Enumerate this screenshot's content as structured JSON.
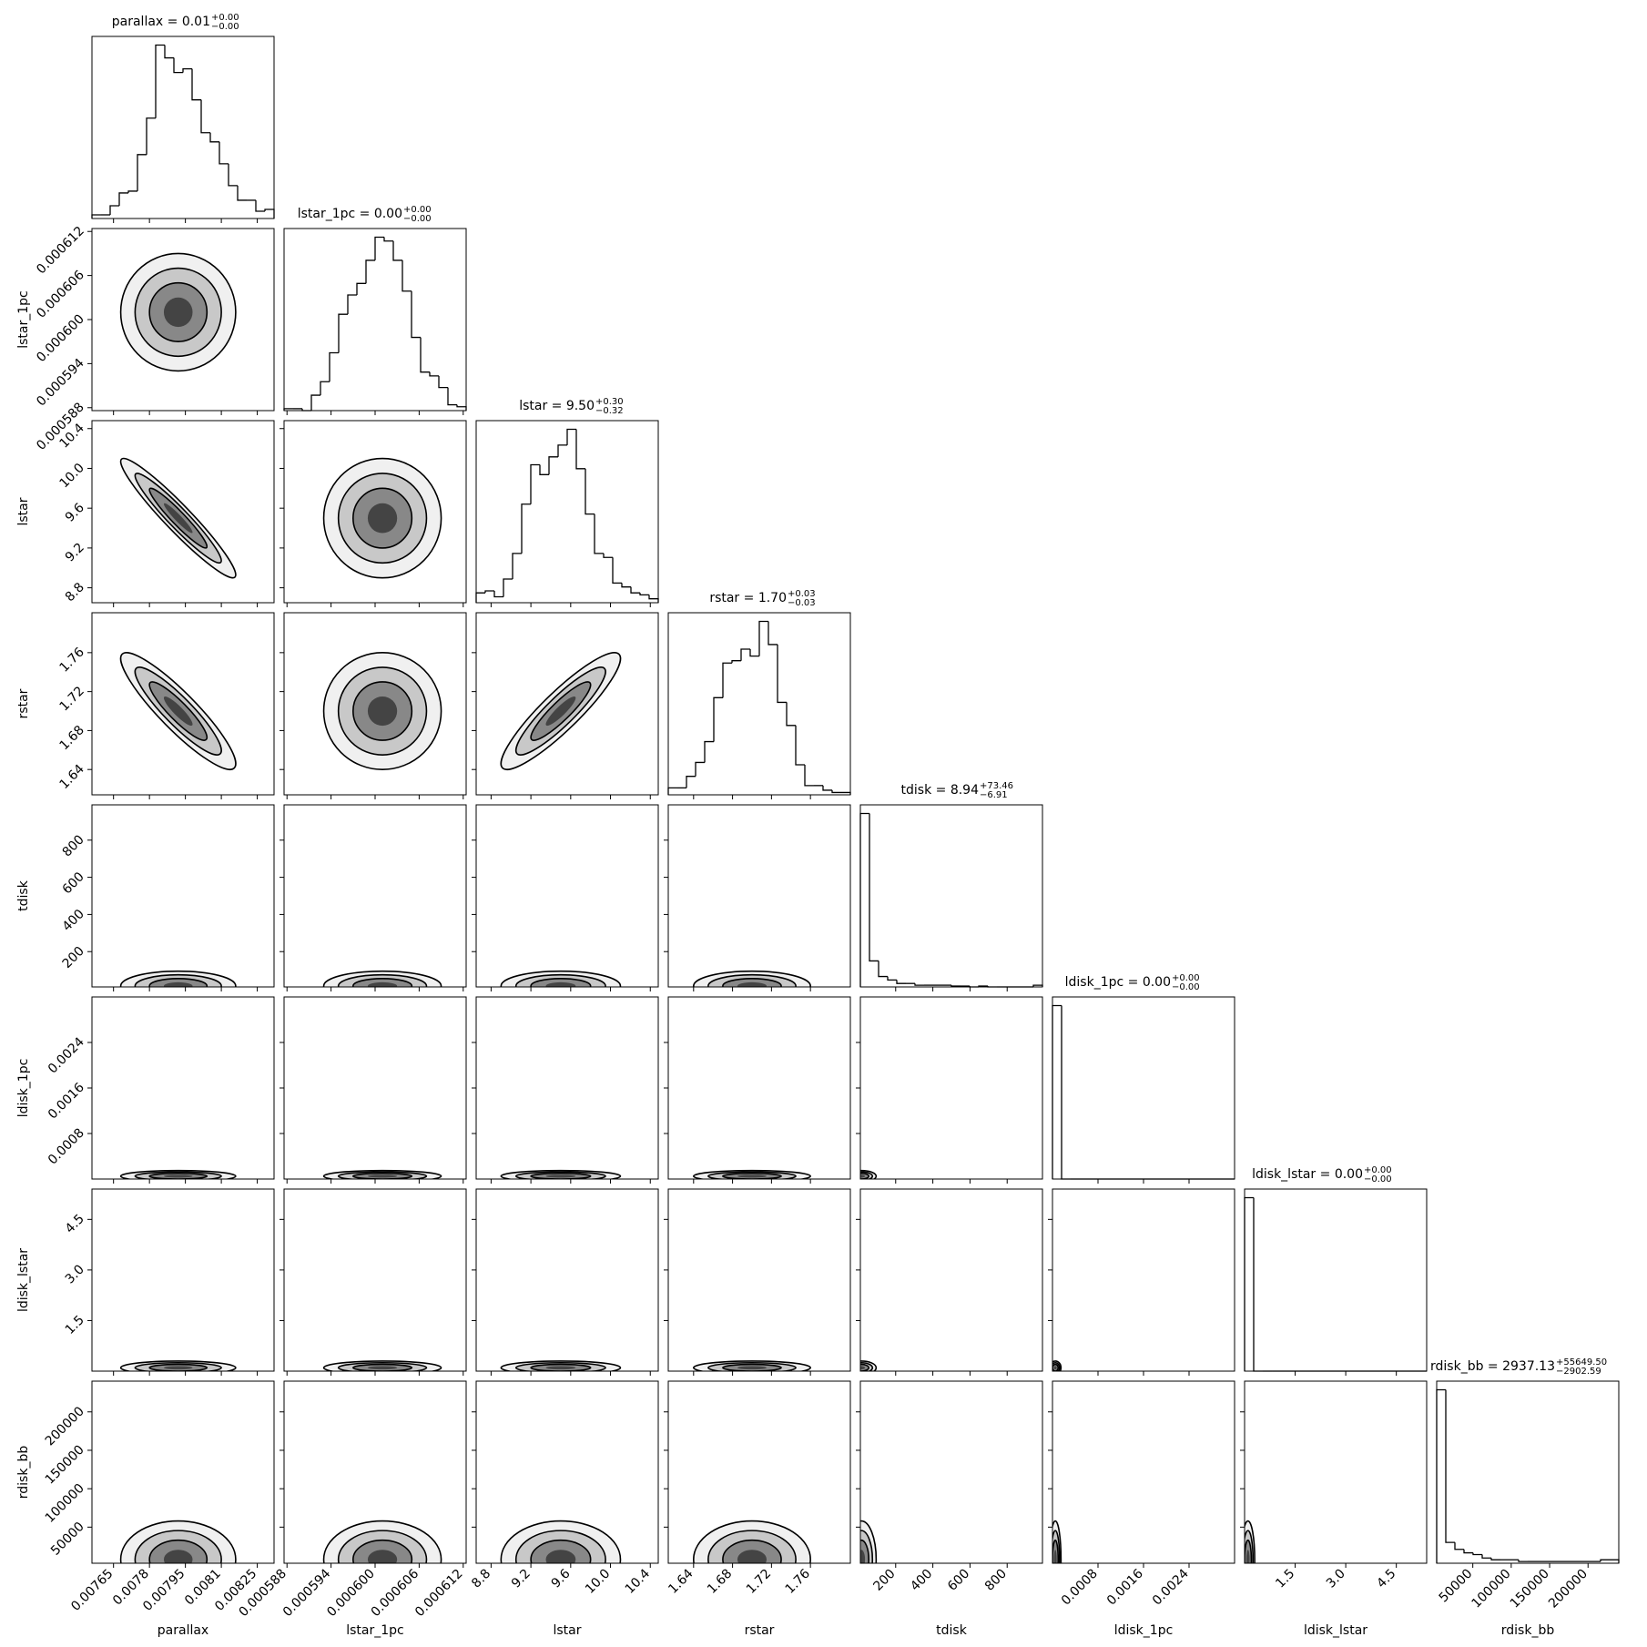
{
  "chart_data": {
    "type": "corner",
    "parameters": [
      {
        "name": "parallax",
        "title": "parallax = 0.01",
        "upper": "+0.00",
        "lower": "−0.00",
        "lim": [
          0.00756,
          0.00832
        ],
        "ticks": [
          0.00765,
          0.0078,
          0.00795,
          0.0081,
          0.00825
        ],
        "counts": [
          2,
          2,
          7,
          14,
          15,
          35,
          55,
          95,
          88,
          80,
          82,
          65,
          47,
          42,
          30,
          18,
          10,
          10,
          4,
          5
        ],
        "center": 0.00792,
        "spread": 0.00012,
        "correlation": []
      },
      {
        "name": "lstar_1pc",
        "title": "lstar_1pc = 0.00",
        "upper": "+0.00",
        "lower": "−0.00",
        "lim": [
          0.0005876,
          0.0006124
        ],
        "ticks": [
          0.000588,
          0.000594,
          {
            "value": 0.0006,
            "label": "0.000600"
          },
          0.000606,
          0.000612
        ],
        "counts": [
          1,
          1,
          0,
          8,
          15,
          30,
          50,
          60,
          66,
          78,
          90,
          88,
          78,
          62,
          38,
          20,
          18,
          12,
          3,
          2
        ],
        "center": 0.000601,
        "spread": 4e-06,
        "correlation": [
          0
        ]
      },
      {
        "name": "lstar",
        "title": "lstar = 9.50",
        "upper": "+0.30",
        "lower": "−0.32",
        "lim": [
          8.65,
          10.48
        ],
        "ticks": [
          8.8,
          9.2,
          9.6,
          {
            "value": 10,
            "label": "10.0"
          },
          10.4
        ],
        "counts": [
          5,
          6,
          3,
          12,
          25,
          50,
          70,
          65,
          74,
          80,
          88,
          68,
          45,
          25,
          23,
          10,
          8,
          5,
          4,
          2
        ],
        "center": 9.5,
        "spread": 0.3,
        "correlation": [
          -0.95,
          0
        ]
      },
      {
        "name": "rstar",
        "title": "rstar = 1.70",
        "upper": "+0.03",
        "lower": "−0.03",
        "lim": [
          1.614,
          1.801
        ],
        "ticks": [
          1.64,
          1.68,
          1.72,
          1.76
        ],
        "counts": [
          3,
          3,
          8,
          14,
          23,
          42,
          57,
          58,
          63,
          60,
          75,
          65,
          40,
          30,
          13,
          4,
          4,
          2,
          1,
          1
        ],
        "center": 1.7,
        "spread": 0.03,
        "correlation": [
          -0.9,
          0,
          0.9
        ]
      },
      {
        "name": "tdisk",
        "title": "tdisk = 8.94",
        "upper": "+73.46",
        "lower": "−6.91",
        "lim": [
          10,
          990
        ],
        "ticks": [
          200,
          400,
          600,
          800
        ],
        "counts": [
          100,
          15,
          6,
          4,
          2,
          2,
          1,
          1,
          1,
          1,
          0.5,
          0.5,
          0,
          0.5,
          0,
          0,
          0,
          0,
          0,
          1
        ],
        "center": 15,
        "spread": 40,
        "correlation": [
          0,
          0,
          0,
          0
        ]
      },
      {
        "name": "ldisk_1pc",
        "title": "ldisk_1pc = 0.00",
        "upper": "+0.00",
        "lower": "−0.00",
        "lim": [
          0,
          0.0032
        ],
        "ticks": [
          0.0008,
          0.0016,
          0.0024
        ],
        "counts": [
          100,
          0,
          0,
          0,
          0,
          0,
          0,
          0,
          0,
          0,
          0,
          0,
          0,
          0,
          0,
          0,
          0,
          0,
          0,
          0
        ],
        "center": 5e-05,
        "spread": 5e-05,
        "correlation": [
          0,
          0,
          0,
          0,
          0
        ]
      },
      {
        "name": "ldisk_lstar",
        "title": "ldisk_lstar = 0.00",
        "upper": "+0.00",
        "lower": "−0.00",
        "lim": [
          0,
          5.4
        ],
        "ticks": [
          1.5,
          {
            "value": 3,
            "label": "3.0"
          },
          4.5
        ],
        "counts": [
          100,
          0,
          0,
          0,
          0,
          0,
          0,
          0,
          0,
          0,
          0,
          0,
          0,
          0,
          0,
          0,
          0,
          0,
          0,
          0
        ],
        "center": 0.1,
        "spread": 0.1,
        "correlation": [
          0,
          0,
          0,
          0,
          0,
          0
        ]
      },
      {
        "name": "rdisk_bb",
        "title": "rdisk_bb = 2937.13",
        "upper": "+55649.50",
        "lower": "−2902.59",
        "lim": [
          3000,
          240000
        ],
        "ticks": [
          50000,
          100000,
          150000,
          200000
        ],
        "counts": [
          100,
          12,
          8,
          6,
          5,
          3,
          2,
          2,
          2,
          1,
          1,
          1,
          1,
          1,
          1,
          1,
          1,
          1,
          2,
          2
        ],
        "center": 8000,
        "spread": 25000,
        "correlation": [
          0,
          0,
          0,
          0,
          0,
          0,
          0
        ]
      }
    ]
  }
}
